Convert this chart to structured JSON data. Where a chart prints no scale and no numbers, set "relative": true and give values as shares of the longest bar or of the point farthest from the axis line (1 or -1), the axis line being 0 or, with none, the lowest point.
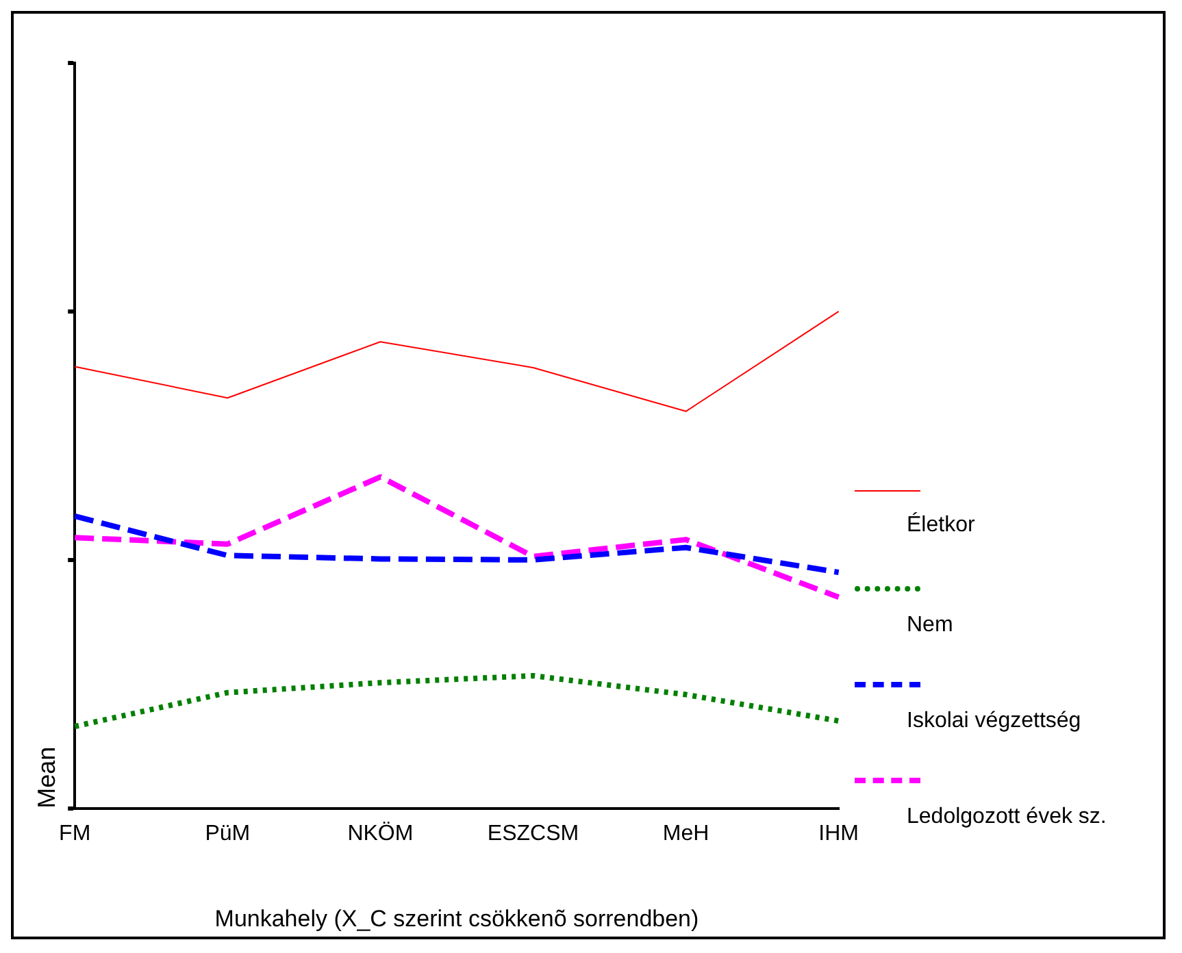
{
  "chart_data": {
    "type": "line",
    "xlabel": "Munkahely (X_C szerint csökkenõ sorrendben)",
    "ylabel": "Mean",
    "relative": true,
    "legend": "right",
    "grid": false,
    "marker": "none",
    "categories": [
      "FM",
      "PüM",
      "NKÖM",
      "ESZCSM",
      "MeH",
      "IHM"
    ],
    "series": [
      {
        "name": "Életkor",
        "color": "#ff0000",
        "line_style": "solid",
        "values": [
          0.889,
          0.826,
          0.939,
          0.887,
          0.799,
          1.0
        ]
      },
      {
        "name": "Nem",
        "color": "#008000",
        "line_style": "dotted",
        "values": [
          0.165,
          0.233,
          0.253,
          0.267,
          0.229,
          0.176
        ]
      },
      {
        "name": "Iskolai végzettség",
        "color": "#0000ff",
        "line_style": "dashed",
        "values": [
          0.588,
          0.509,
          0.502,
          0.5,
          0.525,
          0.475
        ]
      },
      {
        "name": "Ledolgozott évek sz.",
        "color": "#ff00ff",
        "line_style": "dashed",
        "values": [
          0.545,
          0.532,
          0.667,
          0.507,
          0.541,
          0.425
        ]
      }
    ]
  }
}
